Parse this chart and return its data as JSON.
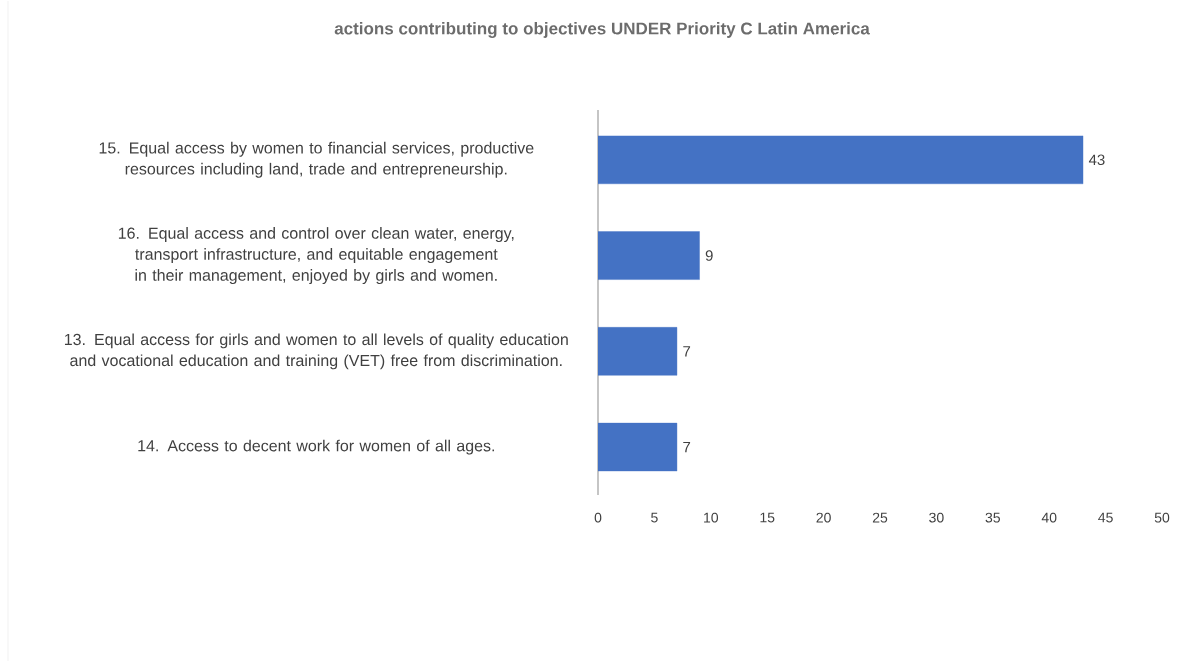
{
  "chart_data": {
    "type": "bar",
    "orientation": "horizontal",
    "title": "actions contributing to objectives UNDER Priority C Latin America",
    "categories": [
      "15. Equal access by women to financial services, productive resources including land, trade and entrepreneurship.",
      "16. Equal access and control over clean water, energy, transport infrastructure, and equitable engagement in their management, enjoyed by girls and women.",
      "13. Equal access for girls and women to all levels of quality education and vocational education and training (VET) free from discrimination.",
      "14. Access to decent work for women of all ages."
    ],
    "values": [
      43,
      9,
      7,
      7
    ],
    "color": "#4472c4",
    "xlim": [
      0,
      50
    ],
    "xticks": [
      0,
      5,
      10,
      15,
      20,
      25,
      30,
      35,
      40,
      45,
      50
    ],
    "data_labels": true
  }
}
